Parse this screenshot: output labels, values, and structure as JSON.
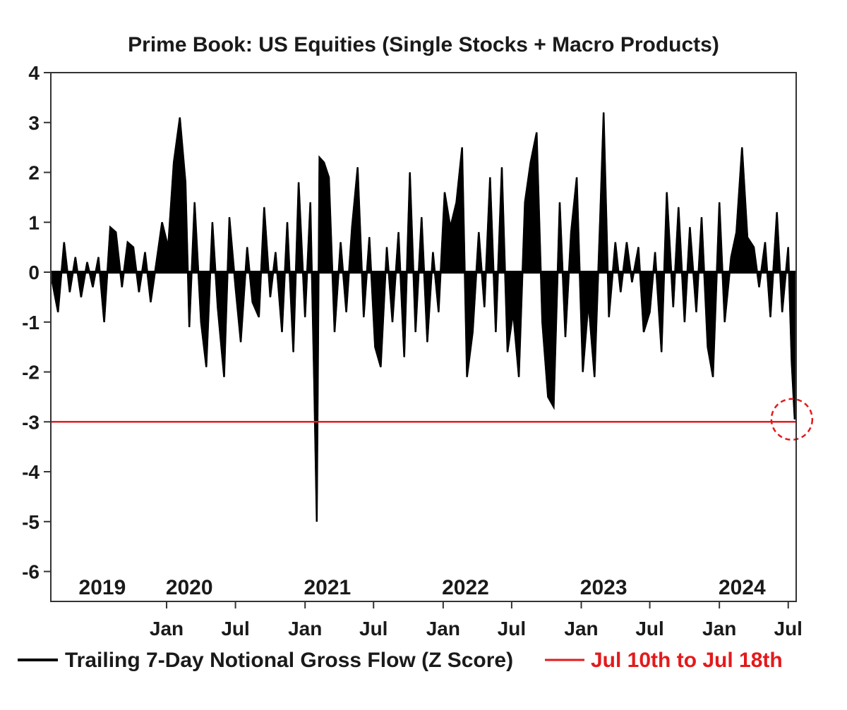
{
  "chart_data": {
    "type": "bar",
    "title": "Prime Book: US Equities (Single Stocks + Macro Products)",
    "xlabel": "",
    "ylabel": "",
    "ylim": [
      -6.6,
      4
    ],
    "yticks": [
      4,
      3,
      2,
      1,
      0,
      -1,
      -2,
      -3,
      -4,
      -5,
      -6
    ],
    "xlim": [
      "2019-03-01",
      "2024-07-22"
    ],
    "month_ticks": [
      {
        "date": "2020-01-01",
        "label": "Jan"
      },
      {
        "date": "2020-07-01",
        "label": "Jul"
      },
      {
        "date": "2021-01-01",
        "label": "Jan"
      },
      {
        "date": "2021-07-01",
        "label": "Jul"
      },
      {
        "date": "2022-01-01",
        "label": "Jan"
      },
      {
        "date": "2022-07-01",
        "label": "Jul"
      },
      {
        "date": "2023-01-01",
        "label": "Jan"
      },
      {
        "date": "2023-07-01",
        "label": "Jul"
      },
      {
        "date": "2024-01-01",
        "label": "Jan"
      },
      {
        "date": "2024-07-01",
        "label": "Jul"
      }
    ],
    "year_labels": [
      {
        "date": "2019-07-15",
        "label": "2019"
      },
      {
        "date": "2020-03-01",
        "label": "2020"
      },
      {
        "date": "2021-03-01",
        "label": "2021"
      },
      {
        "date": "2022-03-01",
        "label": "2022"
      },
      {
        "date": "2023-03-01",
        "label": "2023"
      },
      {
        "date": "2024-03-01",
        "label": "2024"
      }
    ],
    "reference_line": {
      "y": -3,
      "color": "#e31a1c",
      "label": "Jul 10th to Jul 18th"
    },
    "highlight_circle": {
      "date": "2024-07-18",
      "y": -2.95
    },
    "series": [
      {
        "name": "Trailing 7-Day Notional Gross Flow (Z Score)",
        "color": "#000000",
        "points": [
          [
            "2019-03-05",
            -0.2
          ],
          [
            "2019-03-20",
            -0.8
          ],
          [
            "2019-04-05",
            0.6
          ],
          [
            "2019-04-20",
            -0.4
          ],
          [
            "2019-05-05",
            0.3
          ],
          [
            "2019-05-20",
            -0.5
          ],
          [
            "2019-06-05",
            0.2
          ],
          [
            "2019-06-20",
            -0.3
          ],
          [
            "2019-07-05",
            0.3
          ],
          [
            "2019-07-20",
            -1.0
          ],
          [
            "2019-08-05",
            0.9
          ],
          [
            "2019-08-20",
            0.8
          ],
          [
            "2019-09-05",
            -0.3
          ],
          [
            "2019-09-20",
            0.6
          ],
          [
            "2019-10-05",
            0.5
          ],
          [
            "2019-10-20",
            -0.4
          ],
          [
            "2019-11-05",
            0.4
          ],
          [
            "2019-11-20",
            -0.6
          ],
          [
            "2019-12-05",
            0.2
          ],
          [
            "2019-12-20",
            1.0
          ],
          [
            "2020-01-05",
            0.5
          ],
          [
            "2020-01-20",
            2.2
          ],
          [
            "2020-02-05",
            3.1
          ],
          [
            "2020-02-20",
            1.8
          ],
          [
            "2020-03-01",
            -1.1
          ],
          [
            "2020-03-15",
            1.4
          ],
          [
            "2020-04-01",
            -1.0
          ],
          [
            "2020-04-15",
            -1.9
          ],
          [
            "2020-05-01",
            1.0
          ],
          [
            "2020-05-15",
            -0.7
          ],
          [
            "2020-06-01",
            -2.1
          ],
          [
            "2020-06-15",
            1.1
          ],
          [
            "2020-07-01",
            -0.3
          ],
          [
            "2020-07-15",
            -1.4
          ],
          [
            "2020-08-01",
            0.5
          ],
          [
            "2020-08-15",
            -0.6
          ],
          [
            "2020-09-01",
            -0.9
          ],
          [
            "2020-09-15",
            1.3
          ],
          [
            "2020-10-01",
            -0.5
          ],
          [
            "2020-10-15",
            0.4
          ],
          [
            "2020-11-01",
            -1.2
          ],
          [
            "2020-11-15",
            1.0
          ],
          [
            "2020-12-01",
            -1.6
          ],
          [
            "2020-12-15",
            1.8
          ],
          [
            "2021-01-01",
            -0.9
          ],
          [
            "2021-01-15",
            1.4
          ],
          [
            "2021-01-25",
            -2.2
          ],
          [
            "2021-02-01",
            -5.0
          ],
          [
            "2021-02-08",
            2.3
          ],
          [
            "2021-02-20",
            2.2
          ],
          [
            "2021-03-05",
            1.9
          ],
          [
            "2021-03-20",
            -1.2
          ],
          [
            "2021-04-05",
            0.6
          ],
          [
            "2021-04-20",
            -0.8
          ],
          [
            "2021-05-05",
            0.9
          ],
          [
            "2021-05-20",
            2.1
          ],
          [
            "2021-06-05",
            -0.9
          ],
          [
            "2021-06-20",
            0.7
          ],
          [
            "2021-07-05",
            -1.5
          ],
          [
            "2021-07-20",
            -1.9
          ],
          [
            "2021-08-05",
            0.5
          ],
          [
            "2021-08-20",
            -1.0
          ],
          [
            "2021-09-05",
            0.8
          ],
          [
            "2021-09-20",
            -1.7
          ],
          [
            "2021-10-05",
            2.0
          ],
          [
            "2021-10-20",
            -1.2
          ],
          [
            "2021-11-05",
            1.1
          ],
          [
            "2021-11-20",
            -1.4
          ],
          [
            "2021-12-05",
            0.4
          ],
          [
            "2021-12-20",
            -0.8
          ],
          [
            "2022-01-05",
            1.6
          ],
          [
            "2022-01-20",
            0.9
          ],
          [
            "2022-02-05",
            1.4
          ],
          [
            "2022-02-20",
            2.5
          ],
          [
            "2022-03-05",
            -2.1
          ],
          [
            "2022-03-20",
            -1.2
          ],
          [
            "2022-04-05",
            0.8
          ],
          [
            "2022-04-20",
            -0.7
          ],
          [
            "2022-05-05",
            1.9
          ],
          [
            "2022-05-20",
            -1.2
          ],
          [
            "2022-06-05",
            2.1
          ],
          [
            "2022-06-20",
            -1.6
          ],
          [
            "2022-07-05",
            -0.8
          ],
          [
            "2022-07-20",
            -2.1
          ],
          [
            "2022-08-05",
            1.4
          ],
          [
            "2022-08-20",
            2.2
          ],
          [
            "2022-09-05",
            2.8
          ],
          [
            "2022-09-20",
            -1.0
          ],
          [
            "2022-10-05",
            -2.5
          ],
          [
            "2022-10-20",
            -2.7
          ],
          [
            "2022-11-05",
            1.4
          ],
          [
            "2022-11-20",
            -1.3
          ],
          [
            "2022-12-05",
            0.8
          ],
          [
            "2022-12-20",
            1.9
          ],
          [
            "2023-01-05",
            -2.0
          ],
          [
            "2023-01-20",
            -0.6
          ],
          [
            "2023-02-05",
            -2.1
          ],
          [
            "2023-02-20",
            1.1
          ],
          [
            "2023-03-01",
            3.2
          ],
          [
            "2023-03-15",
            -0.9
          ],
          [
            "2023-04-01",
            0.6
          ],
          [
            "2023-04-15",
            -0.4
          ],
          [
            "2023-05-01",
            0.6
          ],
          [
            "2023-05-15",
            -0.2
          ],
          [
            "2023-06-01",
            0.5
          ],
          [
            "2023-06-15",
            -1.2
          ],
          [
            "2023-07-01",
            -0.8
          ],
          [
            "2023-07-15",
            0.4
          ],
          [
            "2023-08-01",
            -1.6
          ],
          [
            "2023-08-15",
            1.6
          ],
          [
            "2023-09-01",
            -0.7
          ],
          [
            "2023-09-15",
            1.3
          ],
          [
            "2023-10-01",
            -1.0
          ],
          [
            "2023-10-15",
            0.9
          ],
          [
            "2023-11-01",
            -0.8
          ],
          [
            "2023-11-15",
            1.1
          ],
          [
            "2023-12-01",
            -1.5
          ],
          [
            "2023-12-15",
            -2.1
          ],
          [
            "2024-01-01",
            1.4
          ],
          [
            "2024-01-15",
            -1.0
          ],
          [
            "2024-02-01",
            0.3
          ],
          [
            "2024-02-15",
            0.8
          ],
          [
            "2024-03-01",
            2.5
          ],
          [
            "2024-03-15",
            0.7
          ],
          [
            "2024-04-01",
            0.5
          ],
          [
            "2024-04-15",
            -0.3
          ],
          [
            "2024-05-01",
            0.6
          ],
          [
            "2024-05-15",
            -0.9
          ],
          [
            "2024-06-01",
            1.2
          ],
          [
            "2024-06-15",
            -0.8
          ],
          [
            "2024-07-01",
            0.5
          ],
          [
            "2024-07-10",
            -1.8
          ],
          [
            "2024-07-18",
            -2.95
          ]
        ]
      }
    ],
    "legend": {
      "position": "bottom",
      "entries": [
        {
          "label": "Trailing 7-Day Notional Gross Flow (Z Score)",
          "color": "#000000"
        },
        {
          "label": "Jul 10th to Jul 18th",
          "color": "#e31a1c"
        }
      ]
    },
    "grid": false
  }
}
